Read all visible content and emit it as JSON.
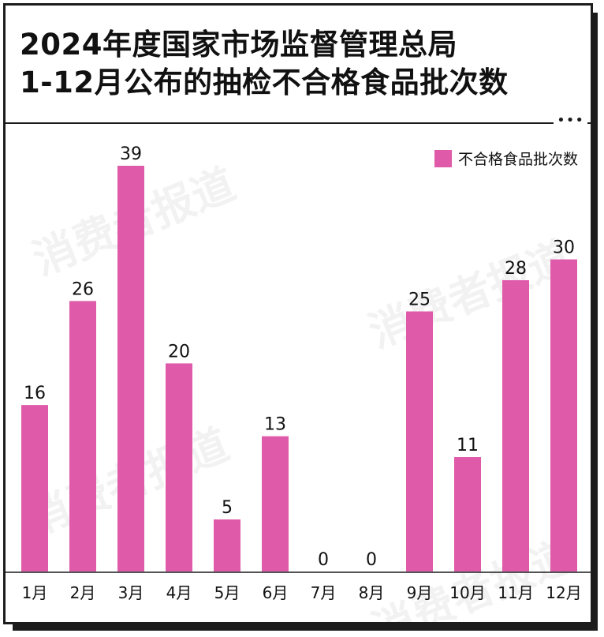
{
  "header": {
    "title_line1": "2024年度国家市场监督管理总局",
    "title_line2": "1-12月公布的抽检不合格食品批次数",
    "more": "•••"
  },
  "watermark": "消费者报道",
  "colors": {
    "bar": "#e05aaa",
    "text": "#111111",
    "border": "#1c1c1c"
  },
  "chart_data": {
    "type": "bar",
    "categories": [
      "1月",
      "2月",
      "3月",
      "4月",
      "5月",
      "6月",
      "7月",
      "8月",
      "9月",
      "10月",
      "11月",
      "12月"
    ],
    "series": [
      {
        "name": "不合格食品批次数",
        "values": [
          16,
          26,
          39,
          20,
          5,
          13,
          0,
          0,
          25,
          11,
          28,
          30
        ]
      }
    ],
    "ylim": [
      0,
      39
    ],
    "legend_position": "top-right",
    "grid": false
  }
}
